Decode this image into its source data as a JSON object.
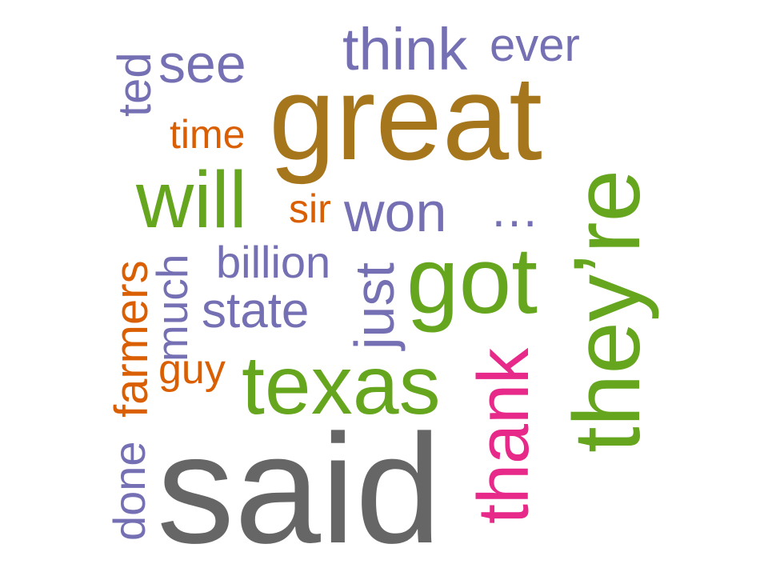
{
  "colors": {
    "purple": "#7570b3",
    "brown": "#a6761d",
    "orange": "#d95f02",
    "green": "#66a61e",
    "magenta": "#e7298a",
    "gray": "#666666"
  },
  "words": {
    "ted": "ted",
    "see": "see",
    "think": "think",
    "ever": "ever",
    "great": "great",
    "time": "time",
    "will": "will",
    "sir": "sir",
    "won": "won",
    "ellipsis": "…",
    "theyre": "they’re",
    "billion": "billion",
    "much": "much",
    "farmers": "farmers",
    "just": "just",
    "got": "got",
    "state": "state",
    "guy": "guy",
    "texas": "texas",
    "thank": "thank",
    "done": "done",
    "said": "said"
  }
}
